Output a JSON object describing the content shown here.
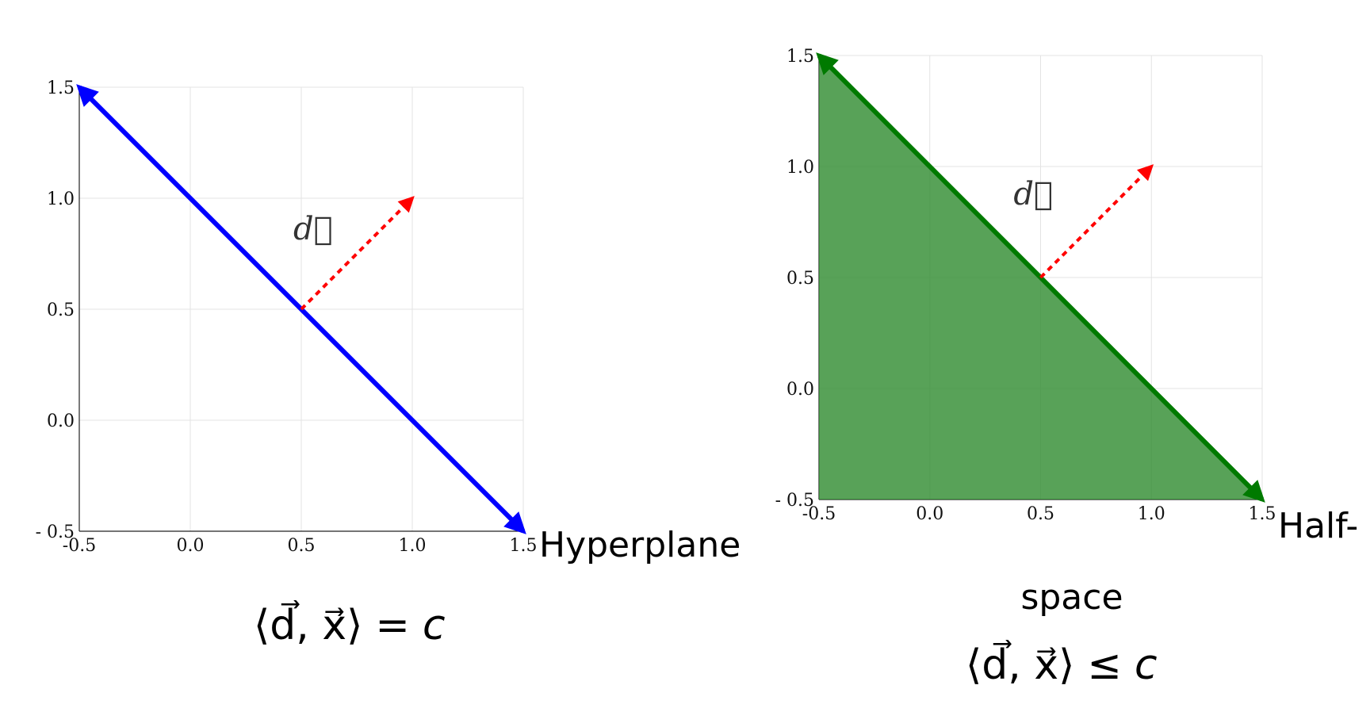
{
  "chart_data": [
    {
      "type": "line",
      "xlim": [
        -0.5,
        1.5
      ],
      "ylim": [
        -0.5,
        1.5
      ],
      "ticks": [
        -0.5,
        0.0,
        0.5,
        1.0,
        1.5
      ],
      "tick_labels_x": [
        "-0.5",
        "0.0",
        "0.5",
        "1.0",
        "1.5"
      ],
      "tick_labels_y": [
        "- 0.5",
        "0.0",
        "0.5",
        "1.0",
        "1.5"
      ],
      "grid": true,
      "line": {
        "x": [
          -0.5,
          1.5
        ],
        "y": [
          1.5,
          -0.5
        ],
        "color": "#0000ff",
        "arrows": "both"
      },
      "vector": {
        "from": [
          0.5,
          0.5
        ],
        "to": [
          1.0,
          1.0
        ],
        "color": "#ff0000",
        "style": "dashed",
        "label": "d⃗"
      },
      "caption": "Hyperplane",
      "formula": {
        "left": "⟨d⃗, x⃗⟩",
        "op": "=",
        "right": "c"
      }
    },
    {
      "type": "area",
      "xlim": [
        -0.5,
        1.5
      ],
      "ylim": [
        -0.5,
        1.5
      ],
      "ticks": [
        -0.5,
        0.0,
        0.5,
        1.0,
        1.5
      ],
      "tick_labels_x": [
        "-0.5",
        "0.0",
        "0.5",
        "1.0",
        "1.5"
      ],
      "tick_labels_y": [
        "- 0.5",
        "0.0",
        "0.5",
        "1.0",
        "1.5"
      ],
      "grid": true,
      "line": {
        "x": [
          -0.5,
          1.5
        ],
        "y": [
          1.5,
          -0.5
        ],
        "color": "#007a00",
        "arrows": "both"
      },
      "fill": {
        "polygon": [
          [
            -0.5,
            1.5
          ],
          [
            -0.5,
            -0.5
          ],
          [
            1.5,
            -0.5
          ]
        ],
        "color": "#2e8b2e",
        "opacity": 0.8
      },
      "vector": {
        "from": [
          0.5,
          0.5
        ],
        "to": [
          1.0,
          1.0
        ],
        "color": "#ff0000",
        "style": "dashed",
        "label": "d⃗"
      },
      "caption_a": "Half-",
      "caption_b": "space",
      "formula": {
        "left": "⟨d⃗, x⃗⟩",
        "op": "≤",
        "right": "c"
      }
    }
  ]
}
